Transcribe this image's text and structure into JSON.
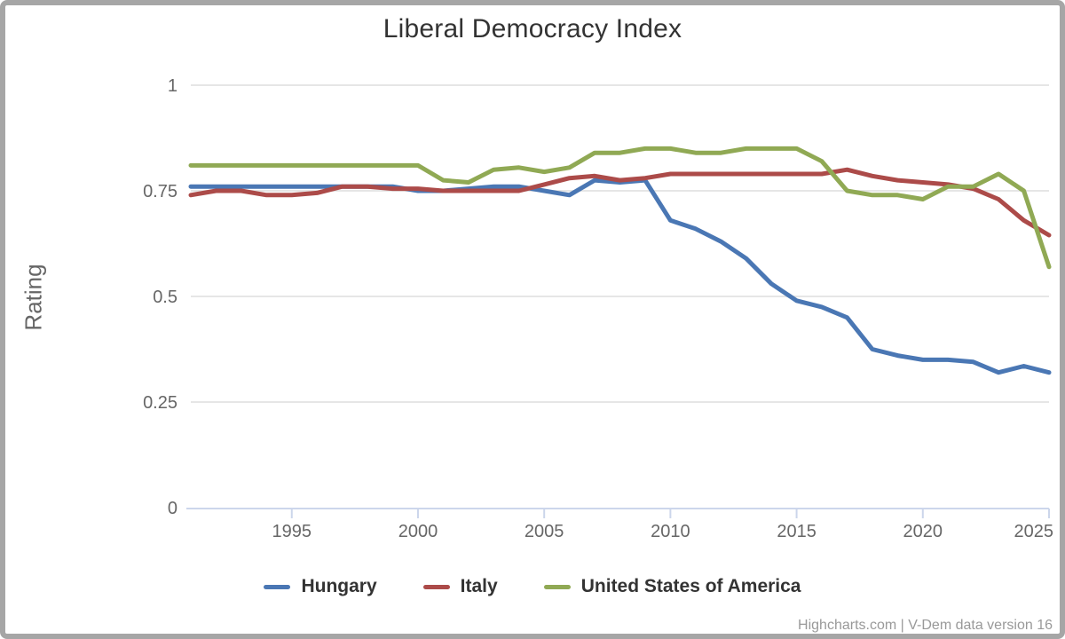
{
  "chart": {
    "title": "Liberal Democracy Index",
    "y_axis_title": "Rating",
    "credits": "Highcharts.com | V-Dem data version 16"
  },
  "chart_data": {
    "type": "line",
    "title": "Liberal Democracy Index",
    "xlabel": "",
    "ylabel": "Rating",
    "ylim": [
      0,
      1
    ],
    "yticks": [
      0,
      0.25,
      0.5,
      0.75,
      1
    ],
    "xticks": [
      1995,
      2000,
      2005,
      2010,
      2015,
      2020,
      2025
    ],
    "grid": "horizontal",
    "legend_position": "bottom",
    "x": [
      1991,
      1992,
      1993,
      1994,
      1995,
      1996,
      1997,
      1998,
      1999,
      2000,
      2001,
      2002,
      2003,
      2004,
      2005,
      2006,
      2007,
      2008,
      2009,
      2010,
      2011,
      2012,
      2013,
      2014,
      2015,
      2016,
      2017,
      2018,
      2019,
      2020,
      2021,
      2022,
      2023,
      2024,
      2025
    ],
    "series": [
      {
        "name": "Hungary",
        "color": "#4a77b4",
        "values": [
          0.76,
          0.76,
          0.76,
          0.76,
          0.76,
          0.76,
          0.76,
          0.76,
          0.76,
          0.75,
          0.75,
          0.755,
          0.76,
          0.76,
          0.75,
          0.74,
          0.775,
          0.77,
          0.775,
          0.68,
          0.66,
          0.63,
          0.59,
          0.53,
          0.49,
          0.475,
          0.45,
          0.375,
          0.36,
          0.35,
          0.35,
          0.345,
          0.32,
          0.335,
          0.32
        ]
      },
      {
        "name": "Italy",
        "color": "#ac4b49",
        "values": [
          0.74,
          0.75,
          0.75,
          0.74,
          0.74,
          0.745,
          0.76,
          0.76,
          0.755,
          0.755,
          0.75,
          0.75,
          0.75,
          0.75,
          0.765,
          0.78,
          0.785,
          0.775,
          0.78,
          0.79,
          0.79,
          0.79,
          0.79,
          0.79,
          0.79,
          0.79,
          0.8,
          0.785,
          0.775,
          0.77,
          0.765,
          0.755,
          0.73,
          0.68,
          0.645
        ]
      },
      {
        "name": "United States of America",
        "color": "#90a954",
        "values": [
          0.81,
          0.81,
          0.81,
          0.81,
          0.81,
          0.81,
          0.81,
          0.81,
          0.81,
          0.81,
          0.775,
          0.77,
          0.8,
          0.805,
          0.795,
          0.805,
          0.84,
          0.84,
          0.85,
          0.85,
          0.84,
          0.84,
          0.85,
          0.85,
          0.85,
          0.82,
          0.75,
          0.74,
          0.74,
          0.73,
          0.76,
          0.76,
          0.79,
          0.75,
          0.57
        ]
      }
    ],
    "colors": {
      "gridline": "#e6e6e6",
      "axis_line": "#ccd6eb",
      "tick_label": "#666666",
      "title": "#333333",
      "credits": "#999999",
      "frame_border": "#a6a6a6"
    }
  }
}
